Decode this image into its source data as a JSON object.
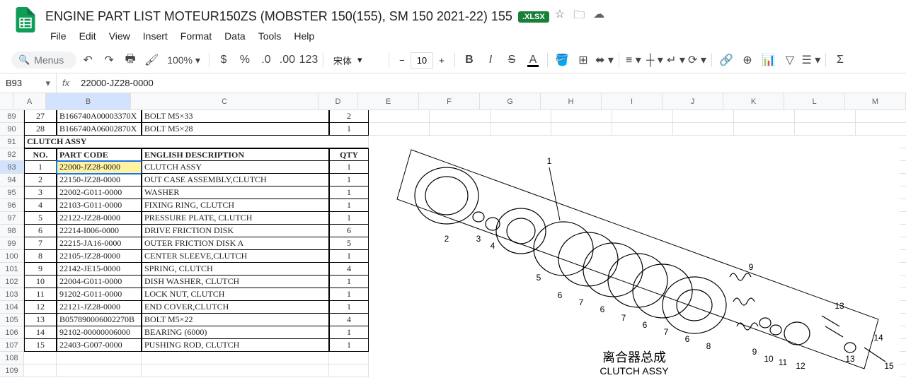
{
  "doc": {
    "title": "ENGINE PART LIST MOTEUR150ZS (MOBSTER 150(155), SM 150 2021-22) 155",
    "badge": ".XLSX"
  },
  "menus": [
    "File",
    "Edit",
    "View",
    "Insert",
    "Format",
    "Data",
    "Tools",
    "Help"
  ],
  "toolbar": {
    "search_placeholder": "Menus",
    "zoom": "100%",
    "font": "宋体",
    "font_size": "10"
  },
  "formula_bar": {
    "cell_ref": "B93",
    "value": "22000-JZ28-0000"
  },
  "columns": [
    "A",
    "B",
    "C",
    "D",
    "E",
    "F",
    "G",
    "H",
    "I",
    "J",
    "K",
    "L",
    "M"
  ],
  "row_numbers": [
    "89",
    "90",
    "91",
    "92",
    "93",
    "94",
    "95",
    "96",
    "97",
    "98",
    "99",
    "100",
    "101",
    "102",
    "103",
    "104",
    "105",
    "106",
    "107",
    "108",
    "109"
  ],
  "section_header": "CLUTCH ASSY",
  "pre_rows": [
    {
      "no": "27",
      "code": "B166740A00003370X",
      "desc": "BOLT M5×33",
      "qty": "2"
    },
    {
      "no": "28",
      "code": "B166740A06002870X",
      "desc": "BOLT M5×28",
      "qty": "1"
    }
  ],
  "table_header": {
    "no": "NO.",
    "code": "PART CODE",
    "desc": "ENGLISH DESCRIPTION",
    "qty": "QTY"
  },
  "rows": [
    {
      "no": "1",
      "code": "22000-JZ28-0000",
      "desc": "CLUTCH ASSY",
      "qty": "1"
    },
    {
      "no": "2",
      "code": "22150-JZ28-0000",
      "desc": "OUT CASE ASSEMBLY,CLUTCH",
      "qty": "1"
    },
    {
      "no": "3",
      "code": "22002-G011-0000",
      "desc": "WASHER",
      "qty": "1"
    },
    {
      "no": "4",
      "code": "22103-G011-0000",
      "desc": "FIXING RING, CLUTCH",
      "qty": "1"
    },
    {
      "no": "5",
      "code": "22122-JZ28-0000",
      "desc": "PRESSURE PLATE, CLUTCH",
      "qty": "1"
    },
    {
      "no": "6",
      "code": "22214-I006-0000",
      "desc": "DRIVE FRICTION DISK",
      "qty": "6"
    },
    {
      "no": "7",
      "code": "22215-JA16-0000",
      "desc": "OUTER FRICTION DISK A",
      "qty": "5"
    },
    {
      "no": "8",
      "code": "22105-JZ28-0000",
      "desc": "CENTER SLEEVE,CLUTCH",
      "qty": "1"
    },
    {
      "no": "9",
      "code": "22142-JE15-0000",
      "desc": "SPRING, CLUTCH",
      "qty": "4"
    },
    {
      "no": "10",
      "code": "22004-G011-0000",
      "desc": "DISH WASHER, CLUTCH",
      "qty": "1"
    },
    {
      "no": "11",
      "code": "91202-G011-0000",
      "desc": "LOCK NUT, CLUTCH",
      "qty": "1"
    },
    {
      "no": "12",
      "code": "22121-JZ28-0000",
      "desc": "END COVER,CLUTCH",
      "qty": "1"
    },
    {
      "no": "13",
      "code": "B057890006002270B",
      "desc": "BOLT M5×22",
      "qty": "4"
    },
    {
      "no": "14",
      "code": "92102-00000006000",
      "desc": "BEARING (6000)",
      "qty": "1"
    },
    {
      "no": "15",
      "code": "22403-G007-0000",
      "desc": "PUSHING ROD, CLUTCH",
      "qty": "1"
    }
  ],
  "diagram": {
    "caption_cn": "离合器总成",
    "caption_en": "CLUTCH ASSY"
  },
  "active": {
    "row": 93,
    "col": "B"
  }
}
